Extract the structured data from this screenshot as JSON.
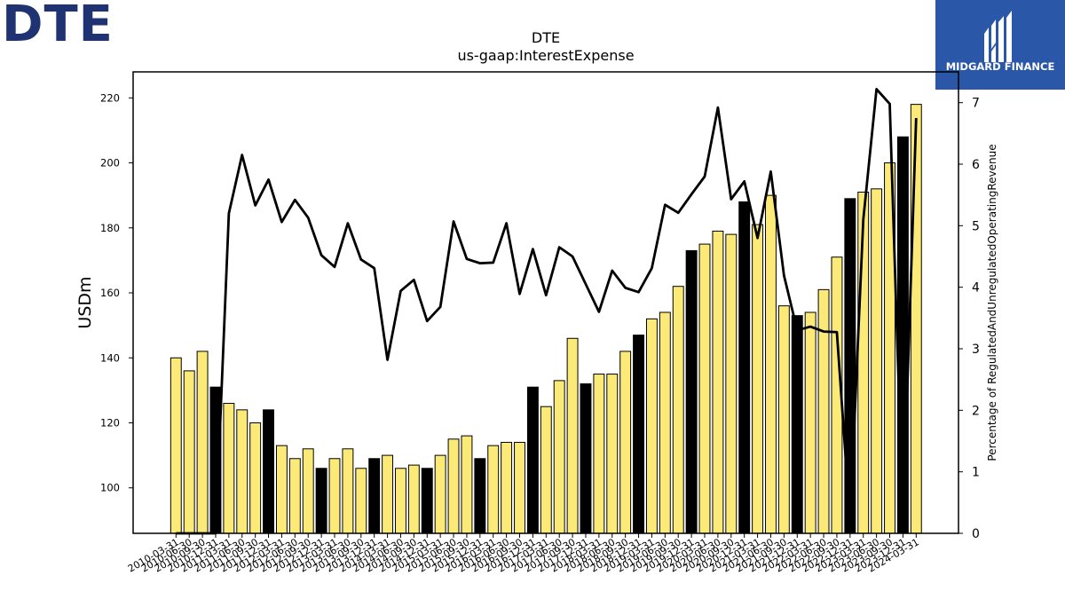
{
  "logos": {
    "left_text": "DTE",
    "right_text": "MIDGARD FINANCE"
  },
  "chart_data": {
    "type": "bar",
    "title": "DTE",
    "subtitle": "us-gaap:InterestExpense",
    "ylabel": "USDm",
    "y2label": "Percentage of RegulatedAndUnregulatedOperatingRevenue",
    "ylim": [
      86,
      228
    ],
    "y2lim": [
      0,
      7.5
    ],
    "yticks": [
      100,
      120,
      140,
      160,
      180,
      200,
      220
    ],
    "y2ticks": [
      0,
      1,
      2,
      3,
      4,
      5,
      6,
      7
    ],
    "grid": false,
    "colors": {
      "bar_normal": "#fcea78",
      "bar_highlight": "#000000",
      "line": "#000000"
    },
    "categories": [
      "2010-03-31",
      "2010-06-30",
      "2010-09-30",
      "2010-12-31",
      "2011-03-31",
      "2011-06-30",
      "2011-09-30",
      "2011-12-31",
      "2012-03-31",
      "2012-06-30",
      "2012-09-30",
      "2012-12-31",
      "2013-03-31",
      "2013-06-30",
      "2013-09-30",
      "2013-12-31",
      "2014-03-31",
      "2014-06-30",
      "2014-09-30",
      "2014-12-31",
      "2015-03-31",
      "2015-06-30",
      "2015-09-30",
      "2015-12-31",
      "2016-03-31",
      "2016-06-30",
      "2016-09-30",
      "2016-12-31",
      "2017-03-31",
      "2017-06-30",
      "2017-09-30",
      "2017-12-31",
      "2018-03-31",
      "2018-06-30",
      "2018-09-30",
      "2018-12-31",
      "2019-03-31",
      "2019-06-30",
      "2019-09-30",
      "2019-12-31",
      "2020-03-31",
      "2020-06-30",
      "2020-09-30",
      "2020-12-31",
      "2021-03-31",
      "2021-06-30",
      "2021-09-30",
      "2021-12-31",
      "2022-03-31",
      "2022-06-30",
      "2022-09-30",
      "2022-12-31",
      "2023-03-31",
      "2023-06-30",
      "2023-09-30",
      "2023-12-31",
      "2024-03-31"
    ],
    "series": [
      {
        "type": "bar",
        "axis": "left",
        "values": [
          140,
          136,
          142,
          131,
          126,
          124,
          120,
          124,
          113,
          109,
          112,
          106,
          109,
          112,
          106,
          109,
          110,
          106,
          107,
          106,
          110,
          115,
          116,
          109,
          113,
          114,
          114,
          131,
          125,
          133,
          146,
          132,
          135,
          135,
          142,
          147,
          152,
          154,
          162,
          173,
          175,
          179,
          178,
          188,
          181,
          190,
          156,
          153,
          154,
          161,
          171,
          189,
          191,
          192,
          200,
          208,
          218
        ],
        "highlight": [
          false,
          false,
          false,
          true,
          false,
          false,
          false,
          true,
          false,
          false,
          false,
          true,
          false,
          false,
          false,
          true,
          false,
          false,
          false,
          true,
          false,
          false,
          false,
          true,
          false,
          false,
          false,
          true,
          false,
          false,
          false,
          true,
          false,
          false,
          false,
          true,
          false,
          false,
          false,
          true,
          false,
          false,
          false,
          true,
          false,
          false,
          false,
          true,
          false,
          false,
          false,
          true,
          false,
          false,
          false,
          true,
          false
        ]
      },
      {
        "type": "line",
        "axis": "right",
        "values": [
          0.0,
          0.0,
          0.0,
          0.0,
          5.2,
          6.15,
          5.33,
          5.75,
          5.06,
          5.42,
          5.13,
          4.52,
          4.33,
          5.04,
          4.45,
          4.31,
          2.82,
          3.94,
          4.12,
          3.45,
          3.68,
          5.07,
          4.46,
          4.39,
          4.4,
          5.04,
          3.89,
          4.62,
          3.87,
          4.65,
          4.5,
          4.05,
          3.6,
          4.27,
          3.99,
          3.92,
          4.31,
          5.34,
          5.21,
          5.51,
          5.8,
          6.92,
          5.43,
          5.72,
          4.8,
          5.88,
          4.19,
          3.3,
          3.36,
          3.28,
          3.27,
          0.2,
          5.1,
          7.22,
          6.98,
          0.2,
          6.75
        ]
      }
    ]
  }
}
